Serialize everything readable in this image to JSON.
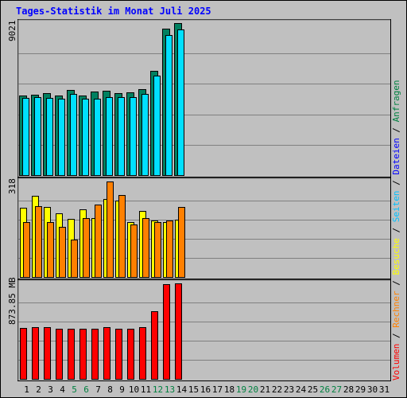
{
  "title": "Tages-Statistik im Monat Juli 2025",
  "panel_labels": {
    "top": "9021",
    "middle": "318",
    "bottom": "873.85 MB"
  },
  "legend": [
    {
      "text": "Volumen",
      "color": "#ff0000"
    },
    {
      "text": " / ",
      "color": "#000000"
    },
    {
      "text": "Rechner",
      "color": "#ff8000"
    },
    {
      "text": " / ",
      "color": "#000000"
    },
    {
      "text": "Besuche",
      "color": "#ffff00"
    },
    {
      "text": " / ",
      "color": "#000000"
    },
    {
      "text": "Seiten",
      "color": "#00c0ff"
    },
    {
      "text": " / ",
      "color": "#000000"
    },
    {
      "text": "Dateien",
      "color": "#0000ff"
    },
    {
      "text": " / ",
      "color": "#000000"
    },
    {
      "text": "Anfragen",
      "color": "#008040"
    }
  ],
  "days": [
    "1",
    "2",
    "3",
    "4",
    "5",
    "6",
    "7",
    "8",
    "9",
    "10",
    "11",
    "12",
    "13",
    "14",
    "15",
    "16",
    "17",
    "18",
    "19",
    "20",
    "21",
    "22",
    "23",
    "24",
    "25",
    "26",
    "27",
    "28",
    "29",
    "30",
    "31"
  ],
  "weekend_days": [
    5,
    6,
    12,
    13,
    19,
    20,
    26,
    27
  ],
  "colors": {
    "anfragen": "#008060",
    "seiten": "#00e0ff",
    "besuche": "#ffff00",
    "rechner": "#ff8000",
    "volumen": "#ff0000",
    "weekend_label": "#008040",
    "weekday_label": "#000000",
    "grid": "#808080"
  },
  "chart_data": [
    {
      "type": "bar",
      "panel": "top",
      "ymax": 9021,
      "x": [
        1,
        2,
        3,
        4,
        5,
        6,
        7,
        8,
        9,
        10,
        11,
        12,
        13,
        14
      ],
      "series": [
        {
          "name": "Anfragen",
          "values": [
            4700,
            4750,
            4850,
            4700,
            5050,
            4700,
            4950,
            5000,
            4850,
            4900,
            5100,
            6200,
            8700,
            9021
          ]
        },
        {
          "name": "Seiten",
          "values": [
            4600,
            4650,
            4600,
            4550,
            4800,
            4550,
            4550,
            4650,
            4650,
            4650,
            4800,
            5900,
            8300,
            8650
          ]
        }
      ]
    },
    {
      "type": "bar",
      "panel": "middle",
      "ymax": 318,
      "x": [
        1,
        2,
        3,
        4,
        5,
        6,
        7,
        8,
        9,
        10,
        11,
        12,
        13,
        14
      ],
      "series": [
        {
          "name": "Besuche",
          "values": [
            230,
            270,
            232,
            212,
            194,
            224,
            196,
            260,
            255,
            183,
            220,
            188,
            182,
            192
          ]
        },
        {
          "name": "Rechner",
          "values": [
            183,
            235,
            184,
            168,
            125,
            195,
            242,
            318,
            272,
            176,
            197,
            184,
            187,
            232
          ]
        }
      ]
    },
    {
      "type": "bar",
      "panel": "bottom",
      "ymax": 873.85,
      "unit": "MB",
      "x": [
        1,
        2,
        3,
        4,
        5,
        6,
        7,
        8,
        9,
        10,
        11,
        12,
        13,
        14
      ],
      "series": [
        {
          "name": "Volumen",
          "values": [
            465,
            470,
            470,
            460,
            460,
            460,
            460,
            470,
            460,
            460,
            475,
            620,
            865,
            873.85
          ]
        }
      ]
    }
  ]
}
